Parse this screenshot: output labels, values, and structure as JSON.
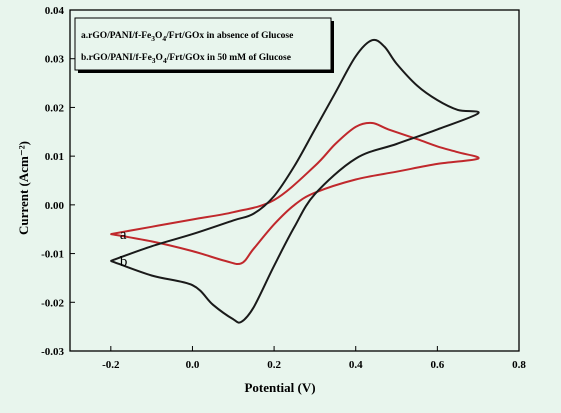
{
  "chart_data": {
    "type": "line",
    "xlabel": "Potential (V)",
    "ylabel": "Current (Acm⁻²)",
    "xlim": [
      -0.3,
      0.8
    ],
    "ylim": [
      -0.03,
      0.04
    ],
    "xticks": [
      -0.2,
      0.0,
      0.2,
      0.4,
      0.6,
      0.8
    ],
    "yticks": [
      -0.03,
      -0.02,
      -0.01,
      0.0,
      0.01,
      0.02,
      0.03,
      0.04
    ],
    "xtick_labels": [
      "-0.2",
      "0.0",
      "0.2",
      "0.4",
      "0.6",
      "0.8"
    ],
    "ytick_labels": [
      "-0.03",
      "-0.02",
      "-0.01",
      "0.00",
      "0.01",
      "0.02",
      "0.03",
      "0.04"
    ],
    "grid": false,
    "legend_position": "top-left",
    "legend": [
      {
        "prefix": "a.rGO/PANI/f-Fe",
        "sub1": "3",
        "mid": "O",
        "sub2": "4",
        "suffix": "/Frt/GOx in absence of Glucose"
      },
      {
        "prefix": "b.rGO/PANI/f-Fe",
        "sub1": "3",
        "mid": "O",
        "sub2": "4",
        "suffix": "/Frt/GOx in 50 mM of Glucose"
      }
    ],
    "series": [
      {
        "label": "a",
        "color": "#c0282c",
        "x": [
          -0.2,
          -0.1,
          0.0,
          0.1,
          0.2,
          0.3,
          0.35,
          0.4,
          0.44,
          0.48,
          0.55,
          0.6,
          0.65,
          0.7,
          0.6,
          0.5,
          0.4,
          0.3,
          0.25,
          0.2,
          0.15,
          0.12,
          0.08,
          0.0,
          -0.1,
          -0.2
        ],
        "y": [
          -0.006,
          -0.0045,
          -0.003,
          -0.0015,
          0.001,
          0.008,
          0.0125,
          0.016,
          0.0168,
          0.0155,
          0.0135,
          0.012,
          0.0108,
          0.0095,
          0.0084,
          0.0068,
          0.0052,
          0.0025,
          0.0,
          -0.004,
          -0.009,
          -0.012,
          -0.0115,
          -0.0095,
          -0.0075,
          -0.006
        ]
      },
      {
        "label": "b",
        "color": "#1a1a1a",
        "x": [
          -0.2,
          -0.1,
          0.0,
          0.1,
          0.15,
          0.2,
          0.25,
          0.3,
          0.35,
          0.4,
          0.44,
          0.47,
          0.5,
          0.55,
          0.6,
          0.65,
          0.7,
          0.6,
          0.5,
          0.4,
          0.3,
          0.25,
          0.2,
          0.15,
          0.12,
          0.1,
          0.05,
          0.0,
          -0.1,
          -0.2
        ],
        "y": [
          -0.0115,
          -0.0085,
          -0.006,
          -0.0032,
          -0.0018,
          0.0018,
          0.008,
          0.0155,
          0.023,
          0.0305,
          0.0338,
          0.0325,
          0.029,
          0.0245,
          0.0215,
          0.0195,
          0.0188,
          0.0155,
          0.0125,
          0.0095,
          0.0022,
          -0.0045,
          -0.0125,
          -0.021,
          -0.024,
          -0.0235,
          -0.0205,
          -0.0165,
          -0.0145,
          -0.0115
        ]
      }
    ]
  }
}
